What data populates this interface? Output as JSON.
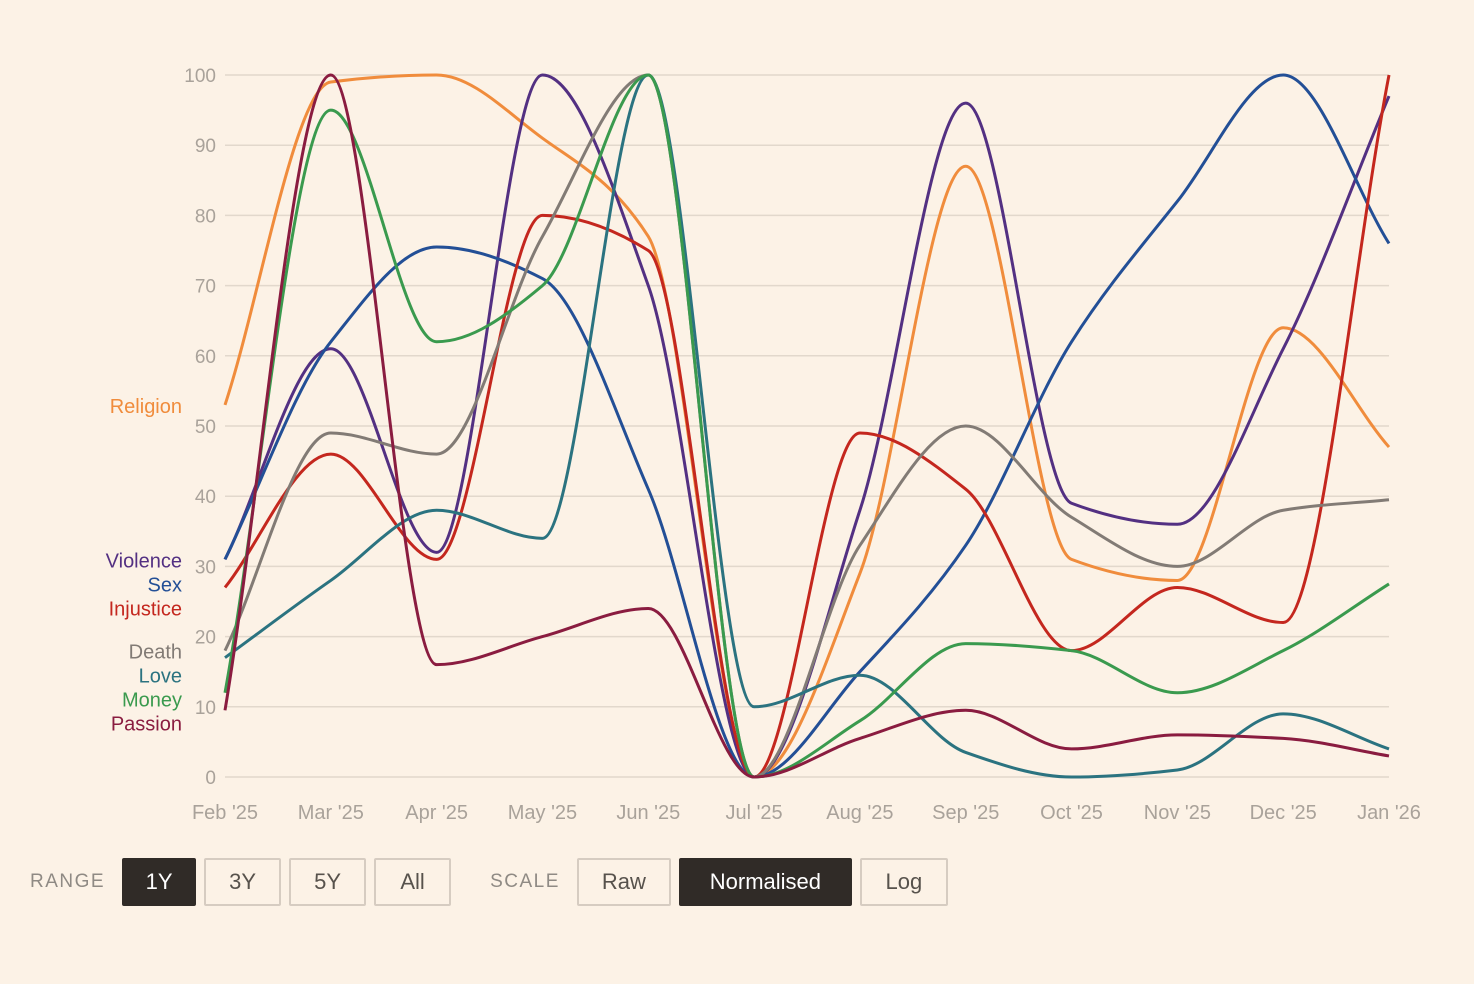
{
  "chart_data": {
    "type": "line",
    "x": [
      "Feb '25",
      "Mar '25",
      "Apr '25",
      "May '25",
      "Jun '25",
      "Jul '25",
      "Aug '25",
      "Sep '25",
      "Oct '25",
      "Nov '25",
      "Dec '25",
      "Jan '26"
    ],
    "yticks": [
      0,
      10,
      20,
      30,
      40,
      50,
      60,
      70,
      80,
      90,
      100
    ],
    "ylim": [
      0,
      100
    ],
    "grid": true,
    "legend": "left, inline at series start",
    "series": [
      {
        "name": "Religion",
        "color": "#f08c3c",
        "values": [
          53,
          99,
          100,
          91,
          77,
          0,
          29,
          87,
          31,
          28,
          64,
          47
        ]
      },
      {
        "name": "Violence",
        "color": "#533082",
        "values": [
          31,
          61,
          32,
          100,
          70,
          0,
          38,
          96,
          39,
          36,
          61,
          97
        ]
      },
      {
        "name": "Sex",
        "color": "#234f96",
        "values": [
          31,
          62,
          75.5,
          71,
          41,
          0,
          15,
          33,
          62,
          82,
          100,
          76
        ]
      },
      {
        "name": "Injustice",
        "color": "#c4271e",
        "values": [
          27,
          46,
          31,
          80,
          75,
          0,
          49,
          41,
          18,
          27,
          22,
          100
        ]
      },
      {
        "name": "Death",
        "color": "#827b75",
        "values": [
          18,
          49,
          46,
          77,
          100,
          0,
          33,
          50,
          37,
          30,
          38,
          39.5
        ]
      },
      {
        "name": "Love",
        "color": "#2b7380",
        "values": [
          17,
          28,
          38,
          34,
          100,
          10,
          14.5,
          3.5,
          0,
          1,
          9,
          4
        ]
      },
      {
        "name": "Money",
        "color": "#3a9a4e",
        "values": [
          12,
          95,
          62,
          70,
          100,
          0,
          8,
          19,
          18,
          12,
          18,
          27.5
        ]
      },
      {
        "name": "Passion",
        "color": "#8a1c40",
        "values": [
          9.5,
          100,
          16,
          20,
          24,
          0,
          5.5,
          9.5,
          4,
          6,
          5.5,
          3
        ]
      }
    ]
  },
  "controls": {
    "range_label": "RANGE",
    "range_options": [
      "1Y",
      "3Y",
      "5Y",
      "All"
    ],
    "range_selected": "1Y",
    "scale_label": "SCALE",
    "scale_options": [
      "Raw",
      "Normalised",
      "Log"
    ],
    "scale_selected": "Normalised"
  }
}
